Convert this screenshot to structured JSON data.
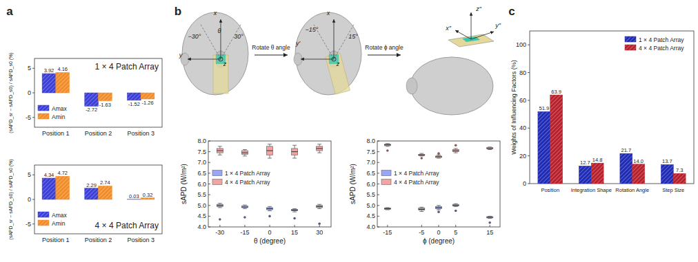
{
  "panel_labels": [
    "a",
    "b",
    "c"
  ],
  "diagram": {
    "steps": [
      "Rotate θ angle",
      "Rotate ϕ angle"
    ],
    "views": [
      {
        "labels": [
          "x",
          "y",
          "z",
          "θ",
          "−30°",
          "30°"
        ]
      },
      {
        "labels": [
          "x",
          "y′",
          "z",
          "−15°",
          "15°"
        ]
      },
      {
        "labels": [
          "x″",
          "y″",
          "z″"
        ]
      }
    ]
  },
  "chart_data": [
    {
      "type": "bar",
      "title": "1 × 4 Patch Array",
      "y_label": "(sAPD_sr − sAPD_s0) / sAPD_s0 (%)",
      "categories": [
        "Position 1",
        "Position 2",
        "Position 3"
      ],
      "series": [
        {
          "name": "Amax",
          "color": "#3b3fd8",
          "values": [
            3.92,
            -2.72,
            -1.52
          ]
        },
        {
          "name": "Amin",
          "color": "#f28c28",
          "values": [
            4.16,
            -1.63,
            -1.26
          ]
        }
      ],
      "ylim": [
        -7,
        7
      ],
      "yticks": [
        -5,
        0,
        5
      ],
      "data_labels": true,
      "legend": "lower left"
    },
    {
      "type": "bar",
      "title": "4 × 4 Patch Array",
      "y_label": "(sAPD_sr − sAPD_s0) / sAPD_s0 (%)",
      "categories": [
        "Position 1",
        "Position 2",
        "Position 3"
      ],
      "series": [
        {
          "name": "Amax",
          "color": "#3b3fd8",
          "values": [
            4.34,
            2.29,
            0.03
          ]
        },
        {
          "name": "Amin",
          "color": "#f28c28",
          "values": [
            4.72,
            2.74,
            0.32
          ]
        }
      ],
      "ylim": [
        -7,
        7
      ],
      "yticks": [
        -5,
        0,
        5
      ],
      "data_labels": true,
      "legend": "lower left"
    },
    {
      "type": "box",
      "x_label": "θ (degree)",
      "y_label": "sAPD (W/m²)",
      "x": [
        -30,
        -15,
        0,
        15,
        30
      ],
      "xlim": [
        -37,
        37
      ],
      "xticks": [
        -30,
        -15,
        0,
        15,
        30
      ],
      "ylim": [
        4,
        8
      ],
      "yticks": [
        {
          "value": 4,
          "label": "4.0"
        },
        {
          "value": 4.5,
          "label": "4.5"
        },
        {
          "value": 5,
          "label": "5.0"
        },
        {
          "value": 5.5,
          "label": "5.5"
        },
        {
          "value": 6,
          "label": "6.0"
        },
        {
          "value": 6.5,
          "label": "6.5"
        },
        {
          "value": 7,
          "label": "7.0"
        },
        {
          "value": 7.5,
          "label": "7.5"
        },
        {
          "value": 8,
          "label": "8.0"
        }
      ],
      "legend": "center left",
      "series": [
        {
          "name": "1 × 4 Patch Array",
          "color": "#9aa6f2",
          "min": [
            4.9,
            4.85,
            4.75,
            4.7,
            4.85
          ],
          "q1": [
            4.95,
            4.9,
            4.8,
            4.75,
            4.9
          ],
          "median": [
            5.0,
            4.92,
            4.85,
            4.78,
            4.95
          ],
          "q3": [
            5.05,
            4.98,
            4.9,
            4.82,
            5.0
          ],
          "max": [
            5.1,
            5.02,
            4.95,
            4.85,
            5.05
          ],
          "outliers": [
            [
              4.35
            ],
            [
              4.45
            ],
            [
              4.5
            ],
            [
              4.4
            ],
            [
              4.15
            ]
          ]
        },
        {
          "name": "4 × 4 Patch Array",
          "color": "#f4a3a3",
          "min": [
            7.35,
            7.3,
            7.2,
            7.2,
            7.45
          ],
          "q1": [
            7.45,
            7.38,
            7.35,
            7.35,
            7.55
          ],
          "median": [
            7.55,
            7.45,
            7.55,
            7.5,
            7.65
          ],
          "q3": [
            7.65,
            7.55,
            7.75,
            7.65,
            7.75
          ],
          "max": [
            7.75,
            7.6,
            7.85,
            7.8,
            7.85
          ],
          "outliers": [
            [],
            [],
            [],
            [],
            []
          ]
        }
      ]
    },
    {
      "type": "box",
      "x_label": "ϕ (degree)",
      "y_label": "sAPD (W/m²)",
      "x": [
        -15,
        -5,
        0,
        5,
        15
      ],
      "xlim": [
        -18,
        18
      ],
      "xticks": [
        -15,
        -5,
        0,
        5,
        15
      ],
      "ylim": [
        4,
        8
      ],
      "yticks": [
        {
          "value": 4,
          "label": "4.0"
        },
        {
          "value": 4.5,
          "label": "4.5"
        },
        {
          "value": 5,
          "label": "5.0"
        },
        {
          "value": 5.5,
          "label": "5.5"
        },
        {
          "value": 6,
          "label": "6.0"
        },
        {
          "value": 6.5,
          "label": "6.5"
        },
        {
          "value": 7,
          "label": "7.0"
        },
        {
          "value": 7.5,
          "label": "7.5"
        },
        {
          "value": 8,
          "label": "8.0"
        }
      ],
      "legend": "center left",
      "series": [
        {
          "name": "1 × 4 Patch Array",
          "color": "#9aa6f2",
          "min": [
            4.8,
            4.72,
            4.8,
            4.95,
            4.4
          ],
          "q1": [
            4.82,
            4.78,
            4.85,
            4.98,
            4.42
          ],
          "median": [
            4.85,
            4.82,
            4.9,
            5.0,
            4.45
          ],
          "q3": [
            4.88,
            4.88,
            4.95,
            5.05,
            4.48
          ],
          "max": [
            4.9,
            4.92,
            5.0,
            5.08,
            4.5
          ],
          "outliers": [
            [],
            [],
            [
              4.7
            ],
            [
              4.75
            ],
            [
              4.2
            ]
          ]
        },
        {
          "name": "4 × 4 Patch Array",
          "color": "#f4a3a3",
          "min": [
            7.75,
            7.3,
            7.2,
            7.45,
            7.6
          ],
          "q1": [
            7.78,
            7.32,
            7.23,
            7.5,
            7.63
          ],
          "median": [
            7.82,
            7.35,
            7.27,
            7.55,
            7.65
          ],
          "q3": [
            7.85,
            7.38,
            7.3,
            7.6,
            7.7
          ],
          "max": [
            7.88,
            7.42,
            7.35,
            7.65,
            7.72
          ],
          "outliers": [
            [
              7.55
            ],
            [
              7.2
            ],
            [
              7.42
            ],
            [
              7.8
            ],
            []
          ]
        }
      ]
    },
    {
      "type": "bar",
      "y_label": "Weights of Influencing Factors (%)",
      "categories": [
        "Position",
        "Integration Shape",
        "Rotation Angle",
        "Step Size"
      ],
      "series": [
        {
          "name": "1 × 4 Patch Array",
          "color": "#1f2bb5",
          "values": [
            51.9,
            12.7,
            21.7,
            13.7
          ]
        },
        {
          "name": "4 × 4 Patch Array",
          "color": "#b8202c",
          "values": [
            63.9,
            14.8,
            14.0,
            7.3
          ],
          "value_labels": [
            "63.9",
            "14.8",
            "14.0",
            "7.3"
          ]
        }
      ],
      "ylim": [
        0,
        110
      ],
      "yticks": [
        0,
        20,
        40,
        60,
        80,
        100
      ],
      "data_labels": true,
      "legend": "upper right"
    }
  ]
}
